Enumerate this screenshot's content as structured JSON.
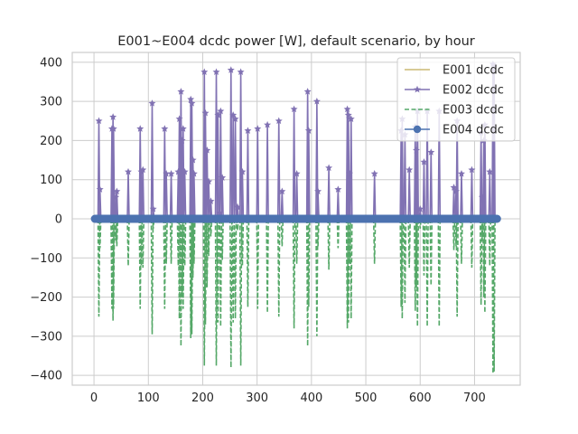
{
  "chart_data": {
    "type": "line",
    "title": "E001~E004 dcdc power [W], default scenario, by hour",
    "xlabel": "",
    "ylabel": "",
    "xlim": [
      -40,
      784
    ],
    "ylim": [
      -425,
      425
    ],
    "xticks": [
      0,
      100,
      200,
      300,
      400,
      500,
      600,
      700
    ],
    "yticks": [
      -400,
      -300,
      -200,
      -100,
      0,
      100,
      200,
      300,
      400
    ],
    "grid": true,
    "legend_position": "top-right",
    "series": [
      {
        "name": "E001 dcdc",
        "color": "#ccb974",
        "linestyle": "solid",
        "marker": "none",
        "values": []
      },
      {
        "name": "E002 dcdc",
        "color": "#8172b3",
        "linestyle": "solid",
        "marker": "star",
        "values": [
          [
            9,
            250
          ],
          [
            11,
            75
          ],
          [
            33,
            230
          ],
          [
            35,
            260
          ],
          [
            36,
            230
          ],
          [
            40,
            55
          ],
          [
            42,
            70
          ],
          [
            63,
            120
          ],
          [
            85,
            230
          ],
          [
            87,
            120
          ],
          [
            90,
            125
          ],
          [
            107,
            295
          ],
          [
            109,
            25
          ],
          [
            130,
            230
          ],
          [
            133,
            115
          ],
          [
            142,
            115
          ],
          [
            155,
            120
          ],
          [
            157,
            255
          ],
          [
            160,
            325
          ],
          [
            162,
            200
          ],
          [
            164,
            230
          ],
          [
            167,
            120
          ],
          [
            178,
            305
          ],
          [
            180,
            295
          ],
          [
            182,
            150
          ],
          [
            184,
            115
          ],
          [
            203,
            375
          ],
          [
            205,
            270
          ],
          [
            208,
            175
          ],
          [
            211,
            95
          ],
          [
            215,
            45
          ],
          [
            225,
            375
          ],
          [
            228,
            265
          ],
          [
            231,
            15
          ],
          [
            233,
            275
          ],
          [
            236,
            105
          ],
          [
            252,
            380
          ],
          [
            256,
            265
          ],
          [
            260,
            255
          ],
          [
            264,
            30
          ],
          [
            270,
            375
          ],
          [
            273,
            120
          ],
          [
            283,
            225
          ],
          [
            301,
            230
          ],
          [
            319,
            240
          ],
          [
            340,
            250
          ],
          [
            346,
            70
          ],
          [
            368,
            280
          ],
          [
            373,
            115
          ],
          [
            393,
            325
          ],
          [
            395,
            225
          ],
          [
            410,
            300
          ],
          [
            412,
            70
          ],
          [
            432,
            130
          ],
          [
            449,
            75
          ],
          [
            466,
            280
          ],
          [
            468,
            265
          ],
          [
            470,
            115
          ],
          [
            473,
            255
          ],
          [
            516,
            115
          ],
          [
            565,
            225
          ],
          [
            567,
            255
          ],
          [
            572,
            215
          ],
          [
            580,
            125
          ],
          [
            591,
            235
          ],
          [
            593,
            175
          ],
          [
            595,
            275
          ],
          [
            600,
            25
          ],
          [
            607,
            145
          ],
          [
            613,
            275
          ],
          [
            620,
            170
          ],
          [
            635,
            275
          ],
          [
            662,
            80
          ],
          [
            666,
            70
          ],
          [
            668,
            250
          ],
          [
            676,
            115
          ],
          [
            695,
            125
          ],
          [
            712,
            220
          ],
          [
            714,
            55
          ],
          [
            717,
            200
          ],
          [
            719,
            240
          ],
          [
            728,
            120
          ],
          [
            734,
            395
          ],
          [
            736,
            390
          ]
        ]
      },
      {
        "name": "E003 dcdc",
        "color": "#55a868",
        "linestyle": "dashed",
        "marker": "none",
        "values": [
          [
            9,
            -250
          ],
          [
            11,
            -75
          ],
          [
            33,
            -230
          ],
          [
            35,
            -260
          ],
          [
            36,
            -230
          ],
          [
            40,
            -55
          ],
          [
            42,
            -70
          ],
          [
            63,
            -120
          ],
          [
            85,
            -230
          ],
          [
            87,
            -120
          ],
          [
            90,
            -125
          ],
          [
            107,
            -295
          ],
          [
            109,
            -25
          ],
          [
            130,
            -230
          ],
          [
            133,
            -115
          ],
          [
            142,
            -115
          ],
          [
            155,
            -120
          ],
          [
            157,
            -255
          ],
          [
            160,
            -325
          ],
          [
            162,
            -200
          ],
          [
            164,
            -230
          ],
          [
            167,
            -120
          ],
          [
            178,
            -305
          ],
          [
            180,
            -295
          ],
          [
            182,
            -150
          ],
          [
            184,
            -115
          ],
          [
            203,
            -375
          ],
          [
            205,
            -270
          ],
          [
            208,
            -175
          ],
          [
            211,
            -95
          ],
          [
            215,
            -45
          ],
          [
            225,
            -375
          ],
          [
            228,
            -265
          ],
          [
            231,
            -15
          ],
          [
            233,
            -275
          ],
          [
            236,
            -105
          ],
          [
            252,
            -380
          ],
          [
            256,
            -265
          ],
          [
            260,
            -255
          ],
          [
            264,
            -30
          ],
          [
            270,
            -375
          ],
          [
            273,
            -120
          ],
          [
            283,
            -225
          ],
          [
            301,
            -230
          ],
          [
            319,
            -240
          ],
          [
            340,
            -250
          ],
          [
            346,
            -70
          ],
          [
            368,
            -280
          ],
          [
            373,
            -115
          ],
          [
            393,
            -325
          ],
          [
            395,
            -225
          ],
          [
            410,
            -300
          ],
          [
            412,
            -70
          ],
          [
            432,
            -130
          ],
          [
            449,
            -75
          ],
          [
            466,
            -280
          ],
          [
            468,
            -265
          ],
          [
            470,
            -115
          ],
          [
            473,
            -255
          ],
          [
            516,
            -115
          ],
          [
            565,
            -225
          ],
          [
            567,
            -255
          ],
          [
            572,
            -215
          ],
          [
            580,
            -125
          ],
          [
            591,
            -235
          ],
          [
            593,
            -175
          ],
          [
            595,
            -275
          ],
          [
            600,
            -25
          ],
          [
            607,
            -145
          ],
          [
            613,
            -275
          ],
          [
            620,
            -170
          ],
          [
            635,
            -275
          ],
          [
            662,
            -80
          ],
          [
            666,
            -70
          ],
          [
            668,
            -250
          ],
          [
            676,
            -115
          ],
          [
            695,
            -125
          ],
          [
            712,
            -220
          ],
          [
            714,
            -55
          ],
          [
            717,
            -200
          ],
          [
            719,
            -240
          ],
          [
            728,
            -120
          ],
          [
            734,
            -395
          ],
          [
            736,
            -390
          ]
        ]
      },
      {
        "name": "E004 dcdc",
        "color": "#4c72b0",
        "linestyle": "solid",
        "marker": "circle",
        "constant": 0,
        "x_range": [
          0,
          743
        ]
      }
    ]
  }
}
